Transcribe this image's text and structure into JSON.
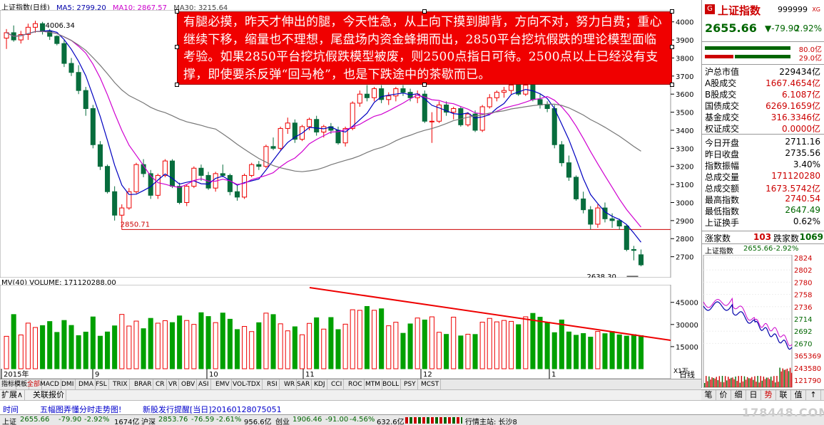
{
  "chart_header": {
    "name": "上证指数(日线)",
    "ma5": "MA5: 2799.20",
    "ma10": "MA10: 2867.57",
    "ma30": "MA30: 3215.64"
  },
  "annotation": {
    "text": "有腿必摸，昨天才伸出的腿，今天性急，从上向下摸到脚背，方向不对，努力白费；重心继续下移，缩量也不理想，尾盘场内资金蜂拥而出，2850平台挖坑假跌的理论模型面临考验。如果2850平台挖坑假跌模型被废，则2500点指日可待。2500点以上已经没有支撑，即使要杀反弹“回马枪”，也是下跌途中的茶歇而已。"
  },
  "price_labels": {
    "high": "4006.34",
    "support": "2850.71",
    "low": "2638.30"
  },
  "y_axis": [
    "4000",
    "3900",
    "3800",
    "3700",
    "3600",
    "3500",
    "3400",
    "3300",
    "3200",
    "3100",
    "3000",
    "2900",
    "2800",
    "2700"
  ],
  "volume_header": {
    "mv": "MV(40)",
    "volume": "VOLUME: 171120288.00"
  },
  "vol_axis": [
    "45000",
    "30000",
    "15000"
  ],
  "vol_unit": "X1万",
  "x_axis": [
    {
      "label": "2015年"
    },
    {
      "label": "9"
    },
    {
      "label": "10"
    },
    {
      "label": "11"
    },
    {
      "label": "12"
    },
    {
      "label": "1"
    }
  ],
  "right_panel": {
    "title": "上证指数",
    "code": "999999",
    "xg": "XG",
    "price": "2655.66",
    "change": "▼-79.90",
    "pct": "2.92%",
    "ratio1": "80.0亿",
    "ratio2": "29.0亿",
    "rows": [
      {
        "label": "沪总市值",
        "value": "229434亿",
        "color": "blk"
      },
      {
        "label": "A股成交",
        "value": "1667.4654亿",
        "color": "red"
      },
      {
        "label": "B股成交",
        "value": "6.1087亿",
        "color": "red"
      },
      {
        "label": "国债成交",
        "value": "6269.1659亿",
        "color": "red"
      },
      {
        "label": "基金成交",
        "value": "316.3346亿",
        "color": "red"
      },
      {
        "label": "权证成交",
        "value": "0.0000亿",
        "color": "red"
      },
      {
        "label": "今日开盘",
        "value": "2711.16",
        "color": "blk"
      },
      {
        "label": "昨日收盘",
        "value": "2735.56",
        "color": "blk"
      },
      {
        "label": "指数振幅",
        "value": "3.40%",
        "color": "blk"
      },
      {
        "label": "总成交量",
        "value": "171120280",
        "color": "red"
      },
      {
        "label": "总成交额",
        "value": "1673.5742亿",
        "color": "red"
      },
      {
        "label": "最高指数",
        "value": "2740.54",
        "color": "red"
      },
      {
        "label": "最低指数",
        "value": "2647.49",
        "color": "grn"
      },
      {
        "label": "上证换手",
        "value": "0.62%",
        "color": "blk"
      }
    ],
    "up_label": "涨家数",
    "up_count": "103",
    "down_label": "跌家数",
    "down_count": "1069",
    "mini_title": "上证指数",
    "mini_price": "2655.66",
    "mini_pct": "-2.92%",
    "mini_axis": [
      "2824",
      "2802",
      "2780",
      "2758",
      "2736",
      "2714",
      "2692",
      "2670",
      "365369",
      "243580",
      "121790"
    ]
  },
  "indicator_tabs": [
    "指标",
    "模板",
    "全部",
    "MACD",
    "DMI",
    "DMA",
    "FSL",
    "TRIX",
    "BRAR",
    "CR",
    "VR",
    "OBV",
    "ASI",
    "EMV",
    "VOL-TDX",
    "RSI",
    "WR",
    "SAR",
    "KDJ",
    "CCI",
    "ROC",
    "MTM",
    "BOLL",
    "PSY",
    "MCST"
  ],
  "subtabs": [
    "扩展∧",
    "关联报价"
  ],
  "period_label": "日线",
  "right_buttons": [
    "笔",
    "价",
    "细",
    "日",
    "势",
    "联",
    "值",
    "↑"
  ],
  "info": {
    "time": "时间",
    "msg1": "五幅图弄懂分时走势图!",
    "msg2": "新股发行提醒[当日]20160128075051"
  },
  "status": {
    "sh": "上证",
    "sh_val": "2655.66",
    "sh_chg": "-79.90",
    "sh_pct": "-2.92%",
    "sh_amt": "1674亿",
    "hs": "沪深",
    "hs_val": "2853.76",
    "hs_chg": "-76.59",
    "hs_pct": "-2.61%",
    "hs_amt": "956.6亿",
    "cy": "创业",
    "cy_val": "1906.46",
    "cy_chg": "-91.00",
    "cy_pct": "-4.56%",
    "cy_amt": "632.6亿",
    "host": "行情主站: 长沙8",
    "watermark": "178448.COM"
  },
  "chart_data": {
    "type": "candlestick",
    "ylim": [
      2600,
      4050
    ],
    "candles": [
      [
        3910,
        3960,
        3850,
        3940
      ],
      [
        3940,
        3980,
        3890,
        3900
      ],
      [
        3900,
        3950,
        3880,
        3930
      ],
      [
        3930,
        3990,
        3900,
        3970
      ],
      [
        3970,
        4006,
        3940,
        3990
      ],
      [
        3990,
        4000,
        3930,
        3950
      ],
      [
        3950,
        3960,
        3900,
        3920
      ],
      [
        3920,
        3925,
        3870,
        3880
      ],
      [
        3880,
        3900,
        3750,
        3770
      ],
      [
        3770,
        3800,
        3700,
        3720
      ],
      [
        3720,
        3760,
        3600,
        3620
      ],
      [
        3620,
        3640,
        3480,
        3520
      ],
      [
        3520,
        3540,
        3300,
        3320
      ],
      [
        3320,
        3340,
        3180,
        3200
      ],
      [
        3200,
        3210,
        3050,
        3060
      ],
      [
        3060,
        3090,
        2900,
        2930
      ],
      [
        2930,
        2990,
        2850,
        2970
      ],
      [
        2970,
        3080,
        2960,
        3060
      ],
      [
        3060,
        3220,
        3050,
        3210
      ],
      [
        3210,
        3240,
        3140,
        3160
      ],
      [
        3160,
        3180,
        3020,
        3040
      ],
      [
        3040,
        3160,
        3020,
        3150
      ],
      [
        3150,
        3240,
        3140,
        3230
      ],
      [
        3230,
        3240,
        3080,
        3090
      ],
      [
        3090,
        3110,
        2990,
        3000
      ],
      [
        3000,
        3100,
        2980,
        3090
      ],
      [
        3090,
        3200,
        3080,
        3190
      ],
      [
        3190,
        3210,
        3120,
        3150
      ],
      [
        3150,
        3170,
        3070,
        3080
      ],
      [
        3080,
        3170,
        3060,
        3160
      ],
      [
        3160,
        3210,
        3140,
        3150
      ],
      [
        3150,
        3160,
        3040,
        3060
      ],
      [
        3060,
        3100,
        3010,
        3030
      ],
      [
        3030,
        3160,
        3020,
        3150
      ],
      [
        3150,
        3220,
        3140,
        3210
      ],
      [
        3210,
        3230,
        3180,
        3200
      ],
      [
        3200,
        3320,
        3190,
        3310
      ],
      [
        3310,
        3360,
        3290,
        3300
      ],
      [
        3300,
        3420,
        3290,
        3410
      ],
      [
        3410,
        3470,
        3380,
        3440
      ],
      [
        3440,
        3460,
        3330,
        3350
      ],
      [
        3350,
        3430,
        3340,
        3420
      ],
      [
        3420,
        3470,
        3400,
        3460
      ],
      [
        3460,
        3480,
        3370,
        3390
      ],
      [
        3390,
        3430,
        3360,
        3420
      ],
      [
        3420,
        3440,
        3380,
        3400
      ],
      [
        3400,
        3420,
        3320,
        3330
      ],
      [
        3330,
        3420,
        3310,
        3410
      ],
      [
        3410,
        3560,
        3400,
        3550
      ],
      [
        3550,
        3620,
        3530,
        3600
      ],
      [
        3600,
        3650,
        3560,
        3580
      ],
      [
        3580,
        3640,
        3560,
        3630
      ],
      [
        3630,
        3650,
        3550,
        3570
      ],
      [
        3570,
        3610,
        3540,
        3590
      ],
      [
        3590,
        3640,
        3560,
        3630
      ],
      [
        3630,
        3650,
        3590,
        3610
      ],
      [
        3610,
        3630,
        3560,
        3580
      ],
      [
        3580,
        3620,
        3550,
        3600
      ],
      [
        3600,
        3620,
        3440,
        3450
      ],
      [
        3450,
        3500,
        3330,
        3450
      ],
      [
        3450,
        3560,
        3440,
        3540
      ],
      [
        3540,
        3560,
        3480,
        3500
      ],
      [
        3500,
        3530,
        3460,
        3520
      ],
      [
        3520,
        3530,
        3420,
        3430
      ],
      [
        3430,
        3500,
        3420,
        3490
      ],
      [
        3490,
        3510,
        3390,
        3400
      ],
      [
        3400,
        3540,
        3390,
        3530
      ],
      [
        3530,
        3600,
        3520,
        3580
      ],
      [
        3580,
        3620,
        3560,
        3610
      ],
      [
        3610,
        3640,
        3580,
        3620
      ],
      [
        3620,
        3660,
        3600,
        3650
      ],
      [
        3650,
        3670,
        3590,
        3600
      ],
      [
        3600,
        3660,
        3590,
        3650
      ],
      [
        3650,
        3680,
        3560,
        3570
      ],
      [
        3570,
        3600,
        3520,
        3540
      ],
      [
        3540,
        3560,
        3500,
        3520
      ],
      [
        3520,
        3540,
        3300,
        3320
      ],
      [
        3320,
        3340,
        3200,
        3220
      ],
      [
        3220,
        3260,
        3120,
        3140
      ],
      [
        3140,
        3150,
        3010,
        3020
      ],
      [
        3020,
        3060,
        2940,
        2960
      ],
      [
        2960,
        2980,
        2850,
        2880
      ],
      [
        2880,
        2990,
        2860,
        2970
      ],
      [
        2970,
        3000,
        2890,
        2910
      ],
      [
        2910,
        2940,
        2860,
        2900
      ],
      [
        2900,
        2910,
        2850,
        2870
      ],
      [
        2870,
        2880,
        2730,
        2740
      ],
      [
        2740,
        2760,
        2680,
        2735
      ],
      [
        2711,
        2740,
        2647,
        2655
      ]
    ]
  }
}
